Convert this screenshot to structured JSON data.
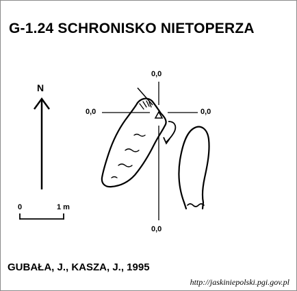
{
  "title": "G-1.24  SCHRONISKO NIETOPERZA",
  "north_label": "N",
  "coordinates": {
    "top": "0,0",
    "left": "0,0",
    "right": "0,0",
    "bottom": "0,0"
  },
  "scale_bar": {
    "start_label": "0",
    "end_label": "1 m"
  },
  "authors": "GUBAŁA, J., KASZA, J., 1995",
  "url": "http://jaskiniepolski.pgi.gov.pl"
}
